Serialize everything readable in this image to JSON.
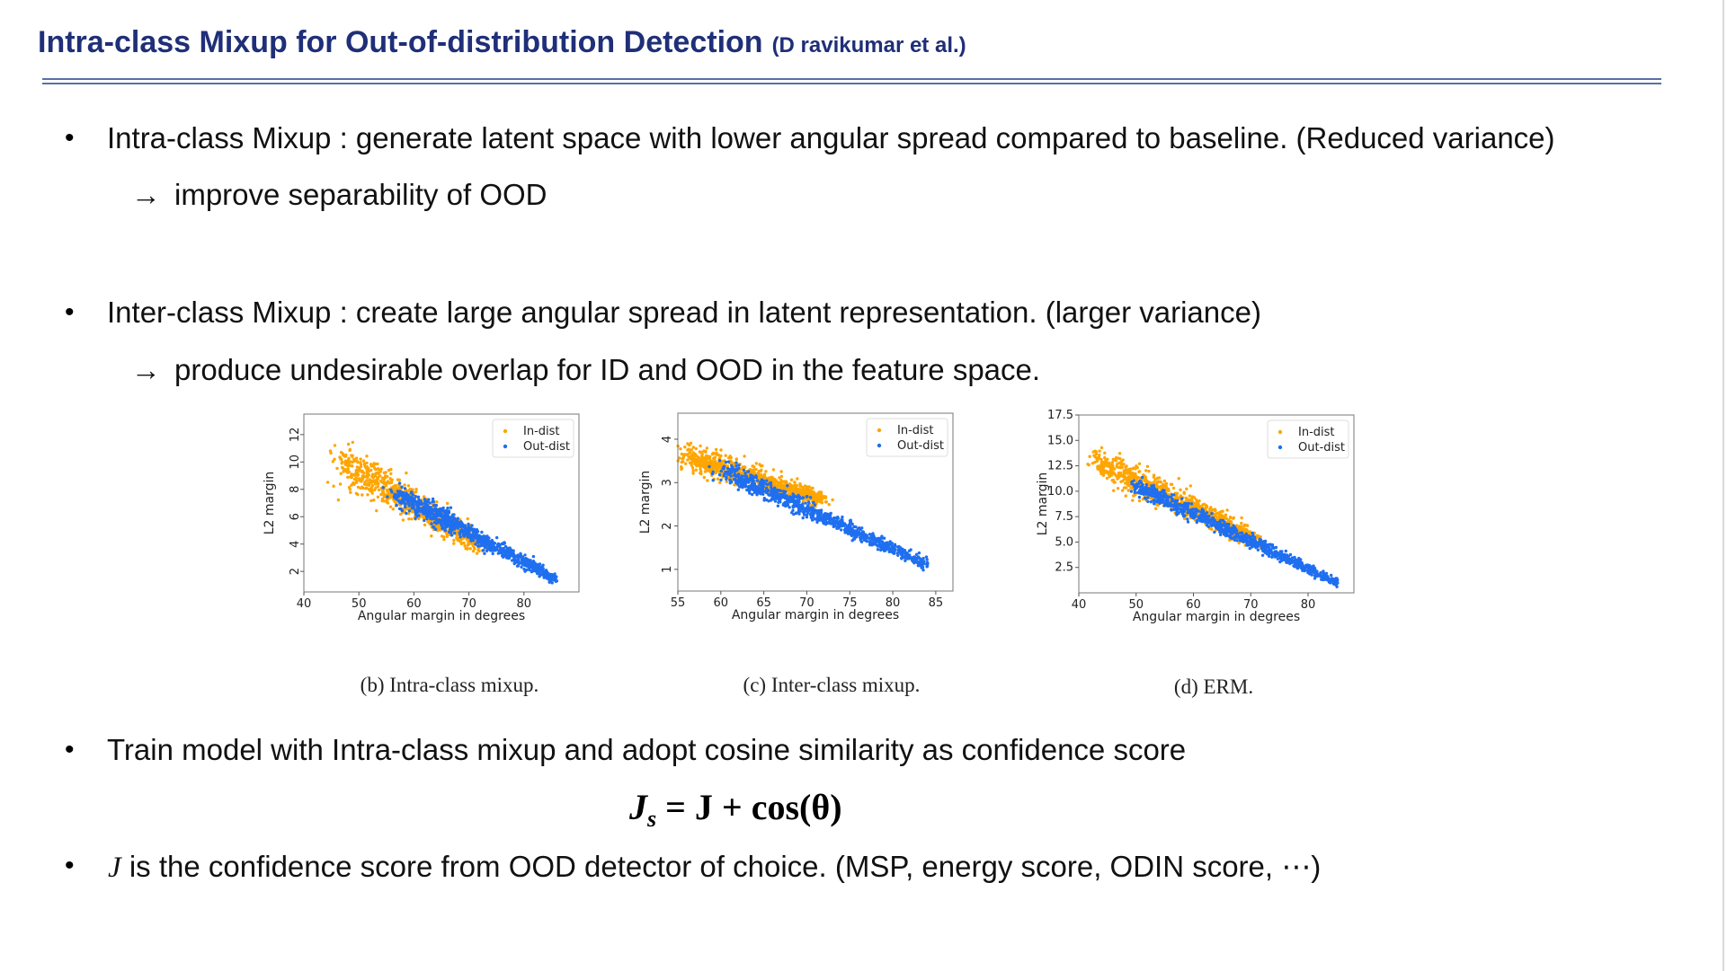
{
  "slide": {
    "title": "Intra-class Mixup for Out-of-distribution Detection",
    "citation": "(D ravikumar et al.)"
  },
  "bullets": [
    {
      "text": "Intra-class Mixup : generate latent space with lower angular spread compared to baseline. (Reduced variance)",
      "sub": "improve separability of OOD"
    },
    {
      "text": "Inter-class Mixup : create large angular spread in latent representation. (larger variance)",
      "sub": "produce undesirable overlap for ID and OOD in the feature space."
    },
    {
      "text": "Train model with Intra-class mixup and adopt cosine similarity as confidence score"
    },
    {
      "symbol": "J",
      "text": "is the confidence score from OOD detector of choice. (MSP, energy score, ODIN score,",
      "ellipsis": "⋯)"
    }
  ],
  "arrow_glyph": "→",
  "bullet_glyph": "•",
  "equation": {
    "lhs": "J",
    "lhs_sub": "s",
    "rhs": "= J + cos(θ)"
  },
  "colors": {
    "title": "#1f2f78",
    "in_dist": "#ffa500",
    "out_dist": "#1f6ff0"
  },
  "chart_data": [
    {
      "type": "scatter",
      "caption": "(b) Intra-class mixup.",
      "xlabel": "Angular margin in degrees",
      "ylabel": "L2 margin",
      "xlim": [
        40,
        90
      ],
      "ylim": [
        0.5,
        13.5
      ],
      "xticks": [
        40,
        50,
        60,
        70,
        80
      ],
      "yticks": [
        2,
        4,
        6,
        8,
        10,
        12
      ],
      "ytick_rotated": true,
      "legend": [
        "In-dist",
        "Out-dist"
      ],
      "legend_position": "top-right",
      "series": [
        {
          "name": "In-dist",
          "center_start": [
            47,
            10.0
          ],
          "center_end": [
            72,
            4.0
          ],
          "spread": [
            3.0,
            1.6
          ],
          "count": 900
        },
        {
          "name": "Out-dist",
          "center_start": [
            57,
            7.6
          ],
          "center_end": [
            85.5,
            1.5
          ],
          "spread": [
            2.4,
            0.8
          ],
          "count": 900
        }
      ]
    },
    {
      "type": "scatter",
      "caption": "(c) Inter-class mixup.",
      "xlabel": "Angular margin in degrees",
      "ylabel": "L2 margin",
      "xlim": [
        55,
        87
      ],
      "ylim": [
        0.5,
        4.6
      ],
      "xticks": [
        55,
        60,
        65,
        70,
        75,
        80,
        85
      ],
      "yticks": [
        1,
        2,
        3,
        4
      ],
      "ytick_rotated": true,
      "legend": [
        "In-dist",
        "Out-dist"
      ],
      "legend_position": "top-right",
      "series": [
        {
          "name": "In-dist",
          "center_start": [
            56,
            3.6
          ],
          "center_end": [
            72,
            2.6
          ],
          "spread": [
            2.4,
            0.35
          ],
          "count": 900
        },
        {
          "name": "Out-dist",
          "center_start": [
            60,
            3.3
          ],
          "center_end": [
            84,
            1.1
          ],
          "spread": [
            1.6,
            0.25
          ],
          "count": 900
        }
      ]
    },
    {
      "type": "scatter",
      "caption": "(d) ERM.",
      "xlabel": "Angular margin in degrees",
      "ylabel": "L2 margin",
      "xlim": [
        40,
        88
      ],
      "ylim": [
        0,
        17.5
      ],
      "xticks": [
        40,
        50,
        60,
        70,
        80
      ],
      "yticks": [
        "2.5",
        "5.0",
        "7.5",
        "10.0",
        "12.5",
        "15.0",
        "17.5"
      ],
      "ytick_rotated": false,
      "legend": [
        "In-dist",
        "Out-dist"
      ],
      "legend_position": "top-right",
      "series": [
        {
          "name": "In-dist",
          "center_start": [
            43,
            13.0
          ],
          "center_end": [
            72,
            5.0
          ],
          "spread": [
            2.2,
            1.8
          ],
          "count": 900
        },
        {
          "name": "Out-dist",
          "center_start": [
            50,
            10.5
          ],
          "center_end": [
            85,
            1.0
          ],
          "spread": [
            1.6,
            0.9
          ],
          "count": 900
        }
      ]
    }
  ]
}
